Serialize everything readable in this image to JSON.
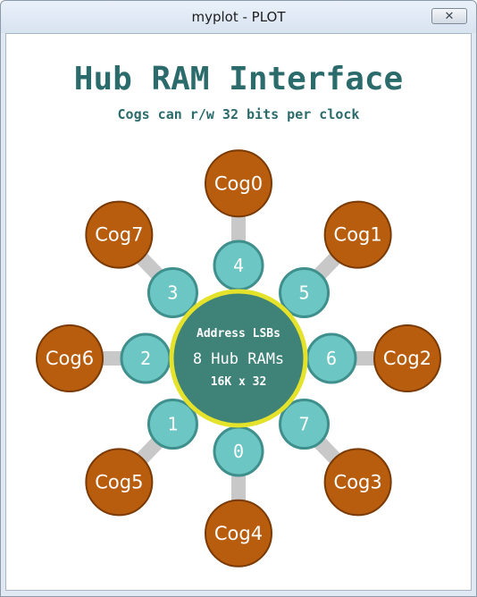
{
  "window": {
    "title": "myplot - PLOT",
    "close_icon": "close-icon"
  },
  "diagram": {
    "title": "Hub RAM Interface",
    "subtitle": "Cogs can r/w 32 bits per clock",
    "hub": {
      "line1": "Address LSBs",
      "line2": "8 Hub RAMs",
      "line3": "16K x 32"
    },
    "nodes": [
      {
        "cog": "Cog0",
        "port": "4"
      },
      {
        "cog": "Cog1",
        "port": "5"
      },
      {
        "cog": "Cog2",
        "port": "6"
      },
      {
        "cog": "Cog3",
        "port": "7"
      },
      {
        "cog": "Cog4",
        "port": "0"
      },
      {
        "cog": "Cog5",
        "port": "1"
      },
      {
        "cog": "Cog6",
        "port": "2"
      },
      {
        "cog": "Cog7",
        "port": "3"
      }
    ],
    "colors": {
      "title": "#2b6b6b",
      "cog_fill": "#b85d0d",
      "cog_stroke": "#7a3a05",
      "port_fill": "#6cc6c3",
      "port_stroke": "#3f8f8c",
      "hub_fill": "#3f8277",
      "hub_ring": "#e4e22a",
      "spoke": "#c8c8c8"
    }
  }
}
